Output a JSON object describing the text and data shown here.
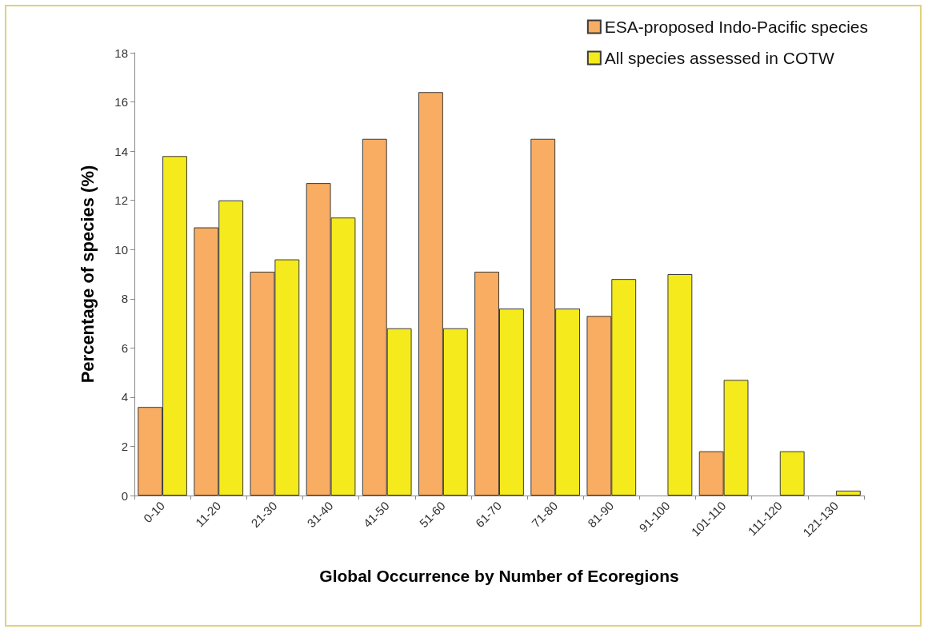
{
  "chart_data": {
    "type": "bar",
    "xlabel": "Global Occurrence by Number of Ecoregions",
    "ylabel": "Percentage of species (%)",
    "categories": [
      "0-10",
      "11-20",
      "21-30",
      "31-40",
      "41-50",
      "51-60",
      "61-70",
      "71-80",
      "81-90",
      "91-100",
      "101-110",
      "111-120",
      "121-130"
    ],
    "series": [
      {
        "name": "ESA-proposed Indo-Pacific species",
        "color": "#f9ad62",
        "values": [
          3.6,
          10.9,
          9.1,
          12.7,
          14.5,
          16.4,
          9.1,
          14.5,
          7.3,
          0,
          1.8,
          0,
          0
        ]
      },
      {
        "name": "All species assessed in COTW",
        "color": "#f5ea1c",
        "values": [
          13.8,
          12.0,
          9.6,
          11.3,
          6.8,
          6.8,
          7.6,
          7.6,
          8.8,
          9.0,
          4.7,
          1.8,
          0.2
        ]
      }
    ],
    "ylim": [
      0,
      18
    ],
    "yticks": [
      0,
      2,
      4,
      6,
      8,
      10,
      12,
      14,
      16,
      18
    ],
    "grid": false,
    "legend": "top right"
  }
}
